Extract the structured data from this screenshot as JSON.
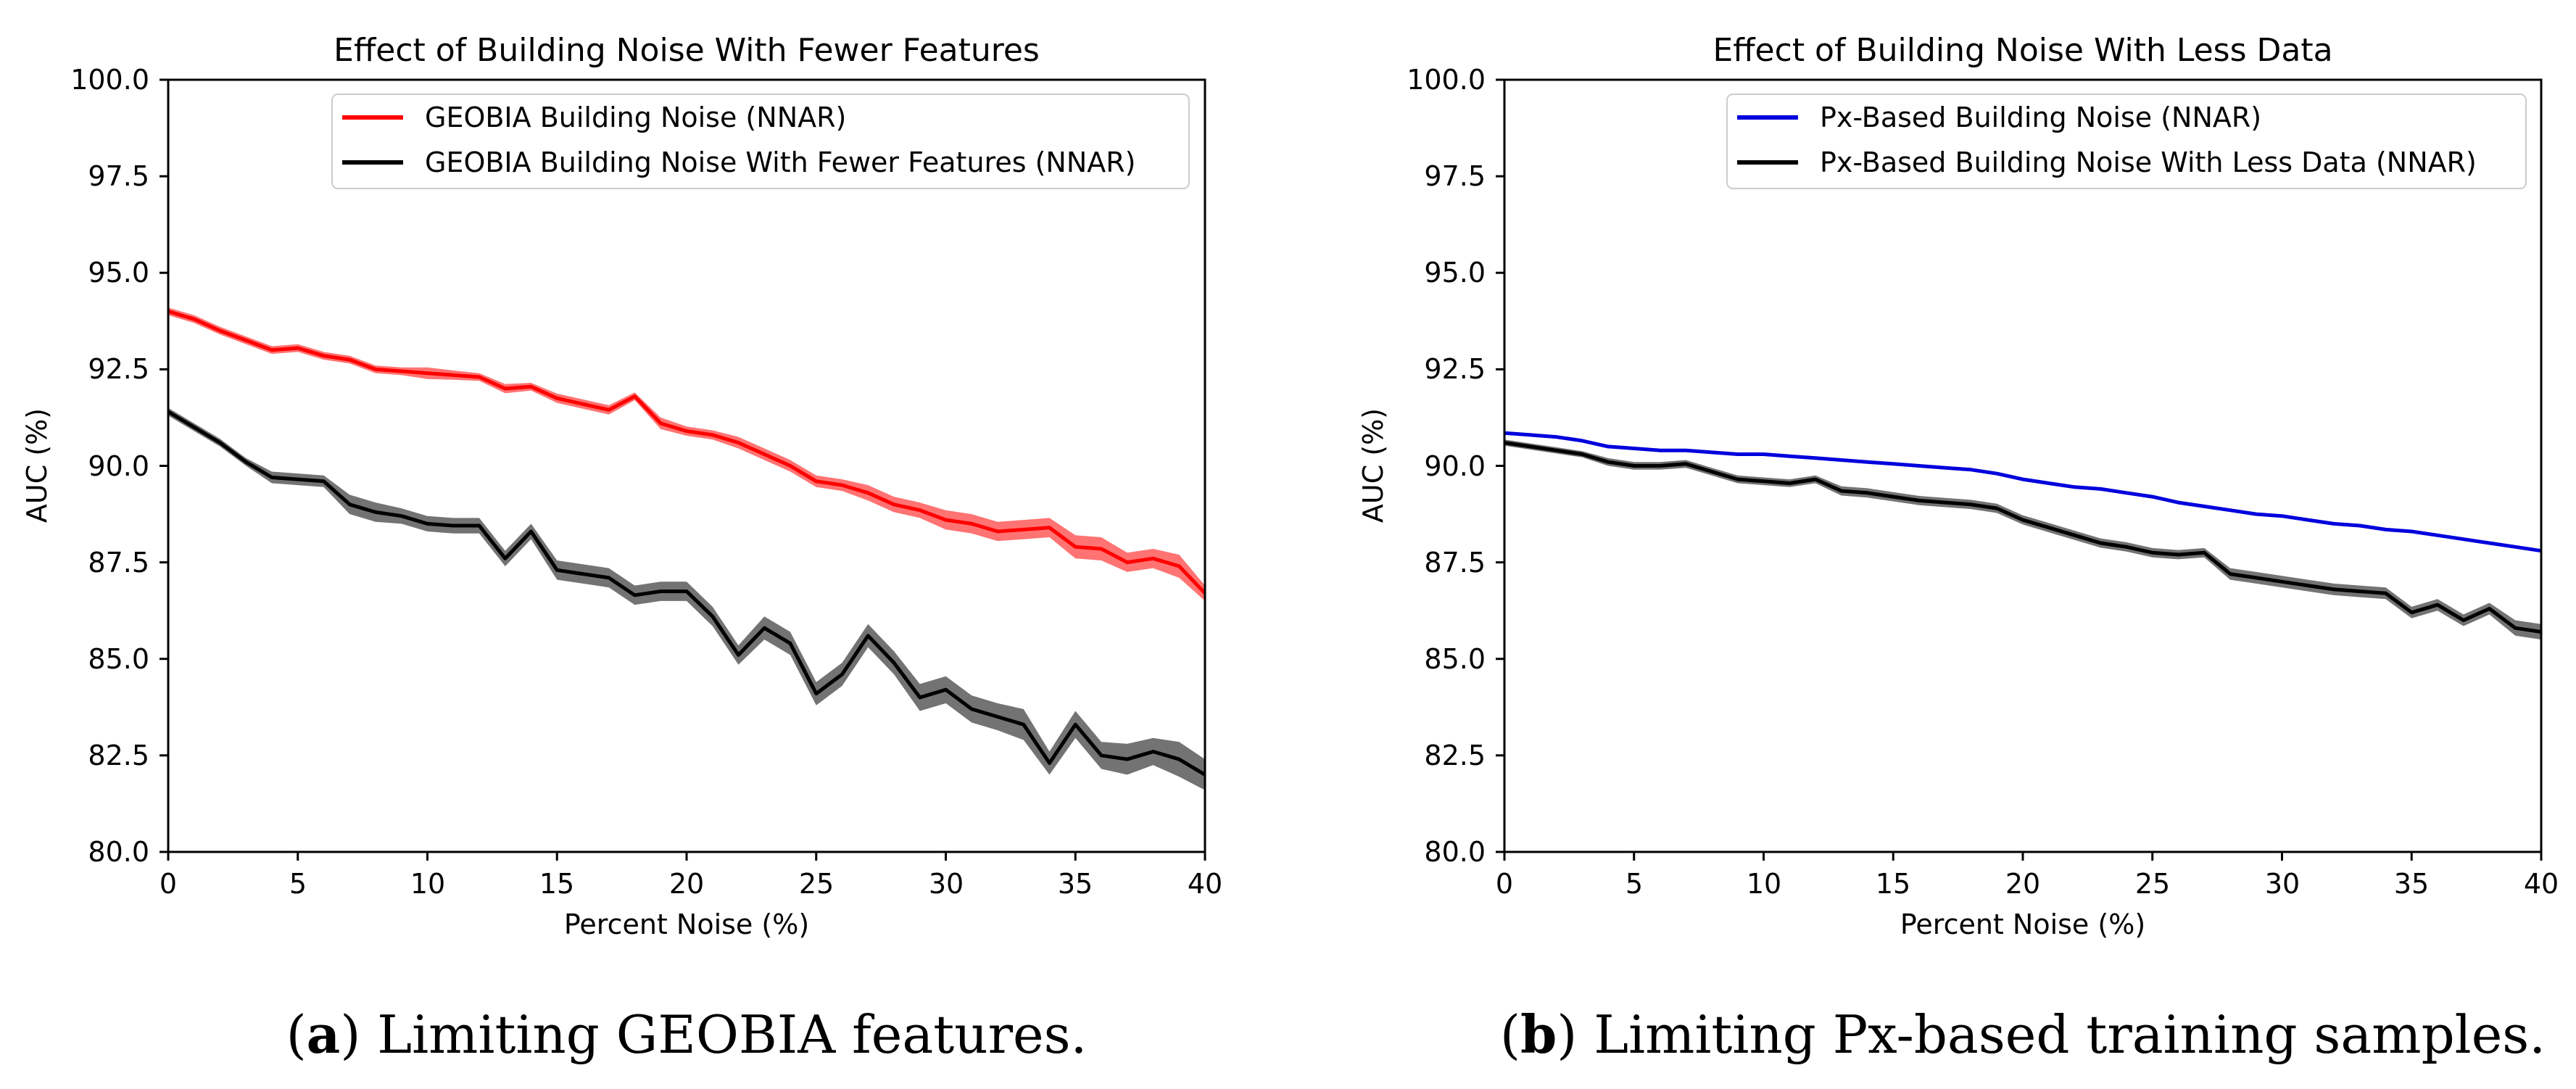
{
  "figure": {
    "captions": [
      {
        "open": "(",
        "letter": "a",
        "close": ") ",
        "text": "Limiting GEOBIA features."
      },
      {
        "open": "(",
        "letter": "b",
        "close": ") ",
        "text": "Limiting Px-based training samples."
      }
    ]
  },
  "chart_data": [
    {
      "type": "line",
      "title": "Effect of Building Noise With Fewer Features",
      "xlabel": "Percent Noise (%)",
      "ylabel": "AUC (%)",
      "xlim": [
        0,
        40
      ],
      "ylim": [
        80,
        100
      ],
      "xticks": [
        "0",
        "5",
        "10",
        "15",
        "20",
        "25",
        "30",
        "35",
        "40"
      ],
      "yticks": [
        "80.0",
        "82.5",
        "85.0",
        "87.5",
        "90.0",
        "92.5",
        "95.0",
        "97.5",
        "100.0"
      ],
      "legend_position": "top-right",
      "series": [
        {
          "name": "GEOBIA Building Noise (NNAR)",
          "color": "#ff0000",
          "band_color": "#ff0000",
          "x": [
            0,
            1,
            2,
            3,
            4,
            5,
            6,
            7,
            8,
            9,
            10,
            11,
            12,
            13,
            14,
            15,
            16,
            17,
            18,
            19,
            20,
            21,
            22,
            23,
            24,
            25,
            26,
            27,
            28,
            29,
            30,
            31,
            32,
            33,
            34,
            35,
            36,
            37,
            38,
            39,
            40
          ],
          "y": [
            94.0,
            93.8,
            93.5,
            93.25,
            93.0,
            93.05,
            92.85,
            92.75,
            92.5,
            92.45,
            92.4,
            92.35,
            92.3,
            92.0,
            92.05,
            91.75,
            91.6,
            91.45,
            91.8,
            91.1,
            90.9,
            90.8,
            90.6,
            90.3,
            90.0,
            89.6,
            89.5,
            89.3,
            89.0,
            88.85,
            88.6,
            88.5,
            88.3,
            88.35,
            88.4,
            87.9,
            87.85,
            87.5,
            87.6,
            87.4,
            86.7
          ],
          "band": [
            0.1,
            0.1,
            0.1,
            0.1,
            0.1,
            0.1,
            0.1,
            0.1,
            0.1,
            0.1,
            0.15,
            0.12,
            0.1,
            0.12,
            0.1,
            0.12,
            0.12,
            0.12,
            0.1,
            0.15,
            0.12,
            0.12,
            0.15,
            0.15,
            0.15,
            0.15,
            0.15,
            0.2,
            0.2,
            0.2,
            0.25,
            0.25,
            0.25,
            0.25,
            0.25,
            0.3,
            0.3,
            0.25,
            0.25,
            0.3,
            0.2
          ]
        },
        {
          "name": "GEOBIA Building Noise With Fewer Features (NNAR)",
          "color": "#000000",
          "band_color": "#000000",
          "x": [
            0,
            1,
            2,
            3,
            4,
            5,
            6,
            7,
            8,
            9,
            10,
            11,
            12,
            13,
            14,
            15,
            16,
            17,
            18,
            19,
            20,
            21,
            22,
            23,
            24,
            25,
            26,
            27,
            28,
            29,
            30,
            31,
            32,
            33,
            34,
            35,
            36,
            37,
            38,
            39,
            40
          ],
          "y": [
            91.4,
            91.0,
            90.6,
            90.1,
            89.7,
            89.65,
            89.6,
            89.0,
            88.8,
            88.7,
            88.5,
            88.45,
            88.45,
            87.6,
            88.3,
            87.3,
            87.2,
            87.1,
            86.65,
            86.75,
            86.75,
            86.1,
            85.1,
            85.8,
            85.4,
            84.1,
            84.6,
            85.6,
            84.9,
            84.0,
            84.2,
            83.7,
            83.5,
            83.3,
            82.3,
            83.3,
            82.5,
            82.4,
            82.6,
            82.4,
            82.0
          ],
          "band": [
            0.1,
            0.1,
            0.1,
            0.1,
            0.15,
            0.15,
            0.15,
            0.25,
            0.25,
            0.2,
            0.2,
            0.2,
            0.2,
            0.2,
            0.2,
            0.25,
            0.25,
            0.25,
            0.25,
            0.25,
            0.25,
            0.25,
            0.25,
            0.3,
            0.3,
            0.3,
            0.3,
            0.3,
            0.3,
            0.35,
            0.35,
            0.35,
            0.35,
            0.4,
            0.3,
            0.35,
            0.35,
            0.4,
            0.35,
            0.45,
            0.4
          ]
        }
      ]
    },
    {
      "type": "line",
      "title": "Effect of Building Noise With Less Data",
      "xlabel": "Percent Noise (%)",
      "ylabel": "AUC (%)",
      "xlim": [
        0,
        40
      ],
      "ylim": [
        80,
        100
      ],
      "xticks": [
        "0",
        "5",
        "10",
        "15",
        "20",
        "25",
        "30",
        "35",
        "40"
      ],
      "yticks": [
        "80.0",
        "82.5",
        "85.0",
        "87.5",
        "90.0",
        "92.5",
        "95.0",
        "97.5",
        "100.0"
      ],
      "legend_position": "top-right",
      "series": [
        {
          "name": "Px-Based Building Noise (NNAR)",
          "color": "#0000dd",
          "band_color": "#0000dd",
          "x": [
            0,
            1,
            2,
            3,
            4,
            5,
            6,
            7,
            8,
            9,
            10,
            11,
            12,
            13,
            14,
            15,
            16,
            17,
            18,
            19,
            20,
            21,
            22,
            23,
            24,
            25,
            26,
            27,
            28,
            29,
            30,
            31,
            32,
            33,
            34,
            35,
            36,
            37,
            38,
            39,
            40
          ],
          "y": [
            90.85,
            90.8,
            90.75,
            90.65,
            90.5,
            90.45,
            90.4,
            90.4,
            90.35,
            90.3,
            90.3,
            90.25,
            90.2,
            90.15,
            90.1,
            90.05,
            90.0,
            89.95,
            89.9,
            89.8,
            89.65,
            89.55,
            89.45,
            89.4,
            89.3,
            89.2,
            89.05,
            88.95,
            88.85,
            88.75,
            88.7,
            88.6,
            88.5,
            88.45,
            88.35,
            88.3,
            88.2,
            88.1,
            88.0,
            87.9,
            87.8
          ],
          "band": [
            0.03,
            0.03,
            0.03,
            0.03,
            0.03,
            0.03,
            0.03,
            0.03,
            0.03,
            0.03,
            0.03,
            0.03,
            0.03,
            0.03,
            0.03,
            0.03,
            0.03,
            0.03,
            0.03,
            0.03,
            0.03,
            0.03,
            0.03,
            0.03,
            0.03,
            0.03,
            0.03,
            0.03,
            0.03,
            0.03,
            0.03,
            0.03,
            0.03,
            0.03,
            0.03,
            0.03,
            0.03,
            0.03,
            0.03,
            0.03,
            0.03
          ]
        },
        {
          "name": "Px-Based Building Noise With Less Data (NNAR)",
          "color": "#000000",
          "band_color": "#000000",
          "x": [
            0,
            1,
            2,
            3,
            4,
            5,
            6,
            7,
            8,
            9,
            10,
            11,
            12,
            13,
            14,
            15,
            16,
            17,
            18,
            19,
            20,
            21,
            22,
            23,
            24,
            25,
            26,
            27,
            28,
            29,
            30,
            31,
            32,
            33,
            34,
            35,
            36,
            37,
            38,
            39,
            40
          ],
          "y": [
            90.6,
            90.5,
            90.4,
            90.3,
            90.1,
            90.0,
            90.0,
            90.05,
            89.85,
            89.65,
            89.6,
            89.55,
            89.65,
            89.35,
            89.3,
            89.2,
            89.1,
            89.05,
            89.0,
            88.9,
            88.6,
            88.4,
            88.2,
            88.0,
            87.9,
            87.75,
            87.7,
            87.75,
            87.2,
            87.1,
            87.0,
            86.9,
            86.8,
            86.75,
            86.7,
            86.2,
            86.4,
            86.0,
            86.3,
            85.8,
            85.7
          ],
          "band": [
            0.08,
            0.08,
            0.08,
            0.08,
            0.1,
            0.1,
            0.1,
            0.1,
            0.1,
            0.1,
            0.1,
            0.1,
            0.1,
            0.12,
            0.12,
            0.12,
            0.12,
            0.12,
            0.12,
            0.12,
            0.12,
            0.12,
            0.12,
            0.12,
            0.12,
            0.12,
            0.12,
            0.12,
            0.15,
            0.15,
            0.15,
            0.15,
            0.15,
            0.15,
            0.15,
            0.15,
            0.15,
            0.15,
            0.15,
            0.2,
            0.2
          ]
        }
      ]
    }
  ]
}
